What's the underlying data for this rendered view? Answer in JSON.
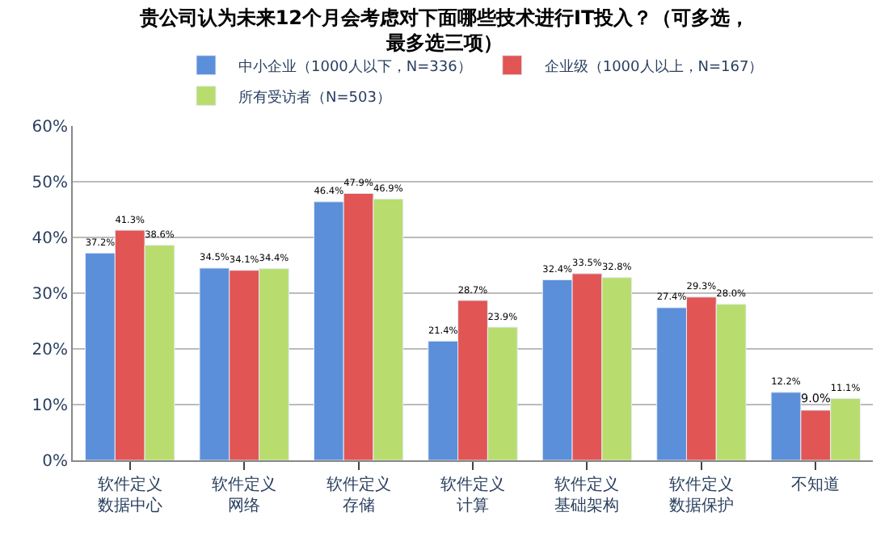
{
  "chart_data": {
    "type": "bar",
    "title": "贵公司认为未来12个月会考虑对下面哪些技术进行IT投入？（可多选，最多选三项）",
    "categories": [
      "软件定义数据中心",
      "软件定义网络",
      "软件定义存储",
      "软件定义计算",
      "软件定义基础架构",
      "软件定义数据保护",
      "不知道"
    ],
    "series": [
      {
        "name": "中小企业（1000人以下，N=336）",
        "color": "#5b8fd9",
        "values": [
          37.2,
          34.5,
          46.4,
          21.4,
          32.4,
          27.4,
          12.2
        ],
        "value_labels": [
          "37.2%",
          "34.5%",
          "46.4%",
          "21.4%",
          "32.4%",
          "27.4%",
          "12.2%"
        ]
      },
      {
        "name": "企业级（1000人以上，N=167）",
        "color": "#e15555",
        "values": [
          41.3,
          34.1,
          47.9,
          28.7,
          33.5,
          29.3,
          9.0
        ],
        "value_labels": [
          "41.3%",
          "34.1%",
          "47.9%",
          "28.7%",
          "33.5%",
          "29.3%",
          "9.0%"
        ]
      },
      {
        "name": "所有受访者（N=503）",
        "color": "#b8dd6e",
        "values": [
          38.6,
          34.4,
          46.9,
          23.9,
          32.8,
          28.0,
          11.1
        ],
        "value_labels": [
          "38.6%",
          "34.4%",
          "46.9%",
          "23.9%",
          "32.8%",
          "28.0%",
          "11.1%"
        ]
      }
    ],
    "ylim": [
      0,
      60
    ],
    "yticks": [
      {
        "value": 0,
        "label": "0%"
      },
      {
        "value": 10,
        "label": "10%"
      },
      {
        "value": 20,
        "label": "20%"
      },
      {
        "value": 30,
        "label": "30%"
      },
      {
        "value": 40,
        "label": "40%"
      },
      {
        "value": 50,
        "label": "50%"
      },
      {
        "value": 60,
        "label": "60%"
      }
    ],
    "grid": "y",
    "legend": "top"
  }
}
